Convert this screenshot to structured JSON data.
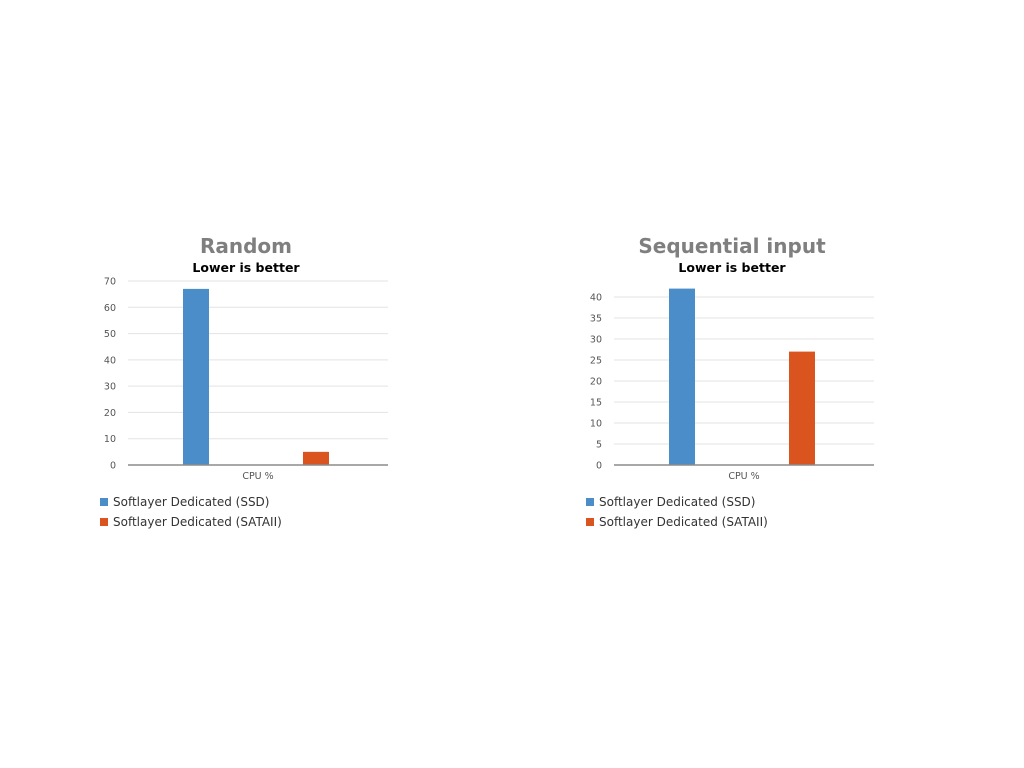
{
  "colors": {
    "ssd": "#4a8dc8",
    "sata": "#d9541e",
    "grid": "#e3e3e3",
    "axis": "#8c8c8c"
  },
  "chart_data": [
    {
      "type": "bar",
      "title": "Random",
      "subtitle": "Lower is better",
      "categories": [
        "CPU %"
      ],
      "xlabel": "CPU %",
      "ylabel": "",
      "ylim": [
        0,
        70
      ],
      "yticks": [
        0,
        10,
        20,
        30,
        40,
        50,
        60,
        70
      ],
      "grid": true,
      "legend_position": "bottom-left",
      "series": [
        {
          "name": "Softlayer Dedicated (SSD)",
          "values": [
            67
          ],
          "color": "#4a8dc8"
        },
        {
          "name": "Softlayer Dedicated (SATAII)",
          "values": [
            5
          ],
          "color": "#d9541e"
        }
      ]
    },
    {
      "type": "bar",
      "title": "Sequential input",
      "subtitle": "Lower is better",
      "categories": [
        "CPU %"
      ],
      "xlabel": "CPU %",
      "ylabel": "",
      "ylim": [
        0,
        40
      ],
      "yticks": [
        0,
        5,
        10,
        15,
        20,
        25,
        30,
        35,
        40
      ],
      "grid": true,
      "legend_position": "bottom-left",
      "series": [
        {
          "name": "Softlayer Dedicated (SSD)",
          "values": [
            42
          ],
          "color": "#4a8dc8"
        },
        {
          "name": "Softlayer Dedicated (SATAII)",
          "values": [
            27
          ],
          "color": "#d9541e"
        }
      ]
    }
  ]
}
